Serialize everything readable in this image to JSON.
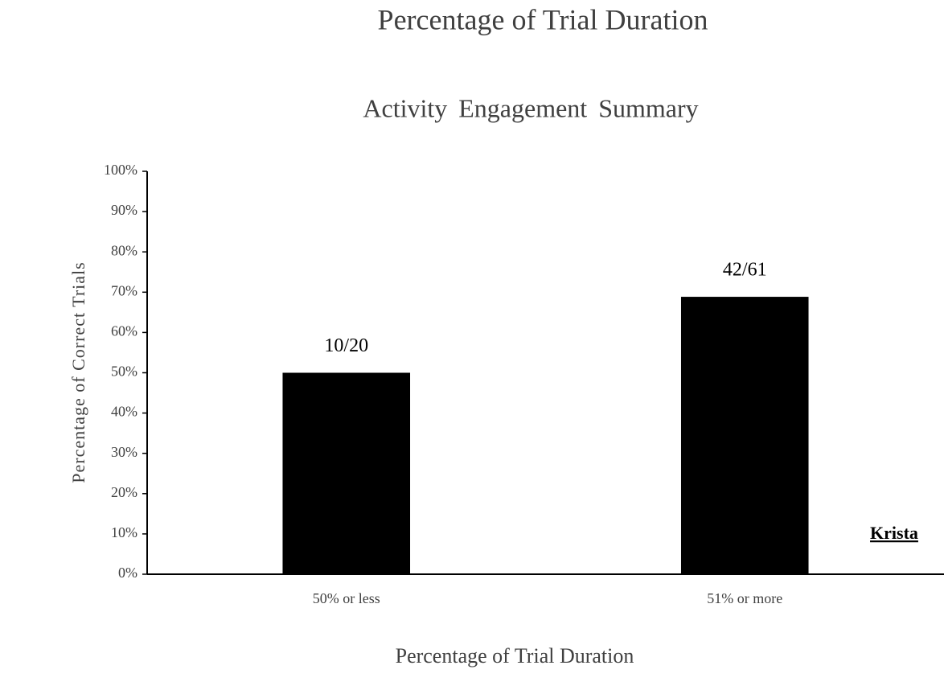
{
  "chart_data": {
    "type": "bar",
    "title": "Percentage of Trial Duration",
    "subtitle": "Activity Engagement Summary",
    "x_label": "Percentage of Trial Duration",
    "y_label": "Percentage of Correct Trials",
    "annotation": "Krista",
    "categories": [
      "50% or less",
      "51% or more"
    ],
    "values": [
      50,
      68.85
    ],
    "value_labels": [
      "10/20",
      "42/61"
    ],
    "color": "#000000",
    "ylim": [
      0,
      100
    ],
    "yticks": [
      {
        "value": 0,
        "label": "0%"
      },
      {
        "value": 10,
        "label": "10%"
      },
      {
        "value": 20,
        "label": "20%"
      },
      {
        "value": 30,
        "label": "30%"
      },
      {
        "value": 40,
        "label": "40%"
      },
      {
        "value": 50,
        "label": "50%"
      },
      {
        "value": 60,
        "label": "60%"
      },
      {
        "value": 70,
        "label": "70%"
      },
      {
        "value": 80,
        "label": "80%"
      },
      {
        "value": 90,
        "label": "90%"
      },
      {
        "value": 100,
        "label": "100%"
      }
    ],
    "grid": false
  }
}
